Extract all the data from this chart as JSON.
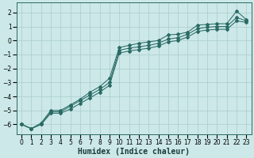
{
  "xlabel": "Humidex (Indice chaleur)",
  "ylabel": "",
  "bg_color": "#cce8e8",
  "grid_color": "#aacccc",
  "line_color": "#2a6b65",
  "xlim": [
    -0.5,
    23.5
  ],
  "ylim": [
    -6.7,
    2.7
  ],
  "xticks": [
    0,
    1,
    2,
    3,
    4,
    5,
    6,
    7,
    8,
    9,
    10,
    11,
    12,
    13,
    14,
    15,
    16,
    17,
    18,
    19,
    20,
    21,
    22,
    23
  ],
  "yticks": [
    -6,
    -5,
    -4,
    -3,
    -2,
    -1,
    0,
    1,
    2
  ],
  "series": [
    [
      0,
      -6.0,
      1,
      -6.3,
      2,
      -5.9,
      3,
      -5.0,
      4,
      -5.0,
      5,
      -4.6,
      6,
      -4.2,
      7,
      -3.7,
      8,
      -3.3,
      9,
      -2.7,
      10,
      -0.5,
      11,
      -0.35,
      12,
      -0.2,
      13,
      -0.1,
      14,
      0.0,
      15,
      0.4,
      16,
      0.45,
      17,
      0.6,
      18,
      1.1,
      19,
      1.15,
      20,
      1.2,
      21,
      1.2,
      22,
      2.1,
      23,
      1.5
    ],
    [
      0,
      -6.0,
      1,
      -6.3,
      2,
      -6.0,
      3,
      -5.1,
      4,
      -5.1,
      5,
      -4.7,
      6,
      -4.3,
      7,
      -3.9,
      8,
      -3.5,
      9,
      -3.0,
      10,
      -0.7,
      11,
      -0.55,
      12,
      -0.45,
      13,
      -0.35,
      14,
      -0.2,
      15,
      0.1,
      16,
      0.2,
      17,
      0.45,
      18,
      0.85,
      19,
      0.95,
      20,
      1.0,
      21,
      1.0,
      22,
      1.65,
      23,
      1.4
    ],
    [
      0,
      -6.0,
      1,
      -6.3,
      2,
      -6.0,
      3,
      -5.2,
      4,
      -5.2,
      5,
      -4.9,
      6,
      -4.5,
      7,
      -4.1,
      8,
      -3.7,
      9,
      -3.2,
      10,
      -0.9,
      11,
      -0.75,
      12,
      -0.65,
      13,
      -0.55,
      14,
      -0.4,
      15,
      -0.1,
      16,
      0.0,
      17,
      0.25,
      18,
      0.65,
      19,
      0.75,
      20,
      0.8,
      21,
      0.8,
      22,
      1.4,
      23,
      1.3
    ]
  ],
  "tick_fontsize": 5.5,
  "xlabel_fontsize": 7.0
}
